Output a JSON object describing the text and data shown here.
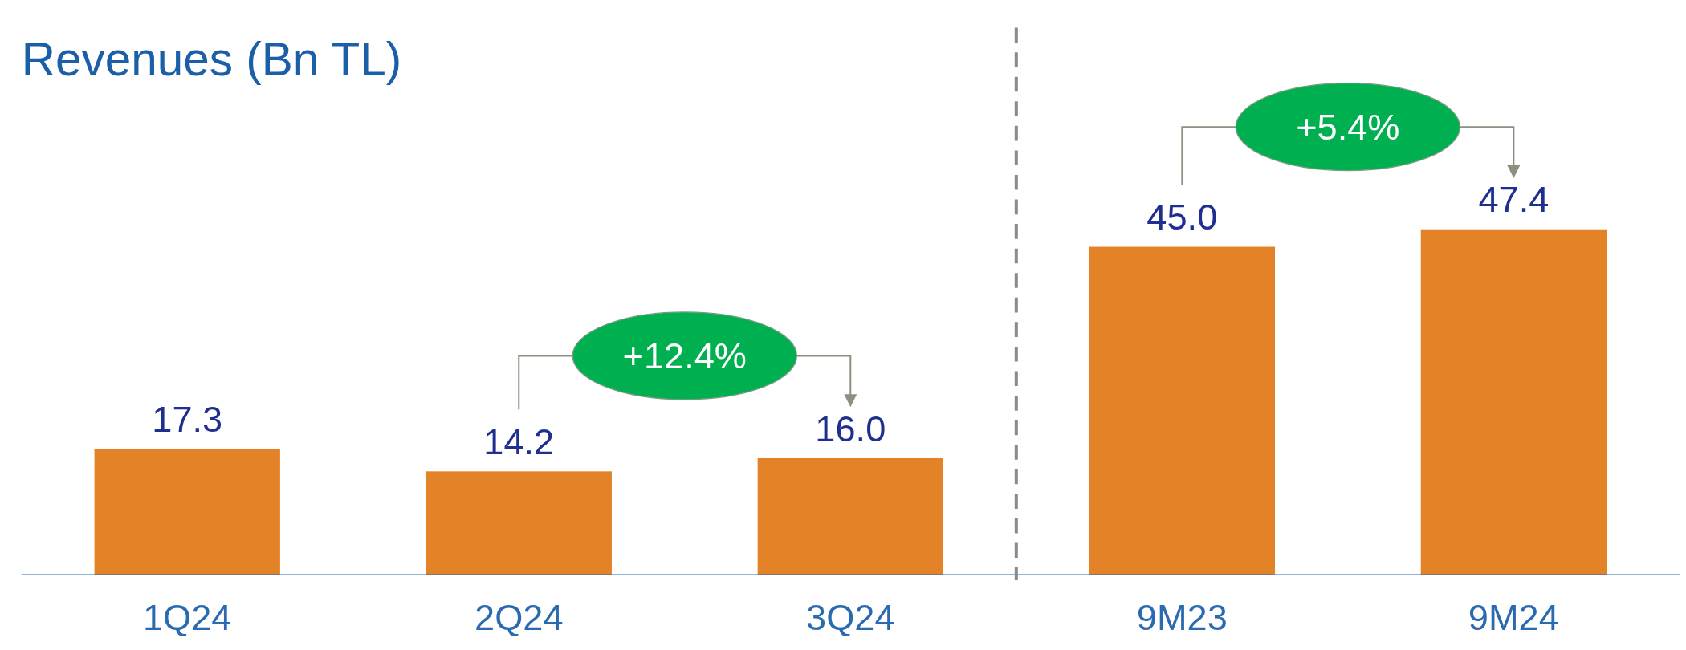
{
  "chart_data": {
    "type": "bar",
    "title": "Revenues (Bn TL)",
    "categories": [
      "1Q24",
      "2Q24",
      "3Q24",
      "9M23",
      "9M24"
    ],
    "values": [
      17.3,
      14.2,
      16.0,
      45.0,
      47.4
    ],
    "value_labels": [
      "17.3",
      "14.2",
      "16.0",
      "45.0",
      "47.4"
    ],
    "color": "#e38227",
    "annotations": [
      "+12.4%",
      "+5.4%"
    ]
  }
}
